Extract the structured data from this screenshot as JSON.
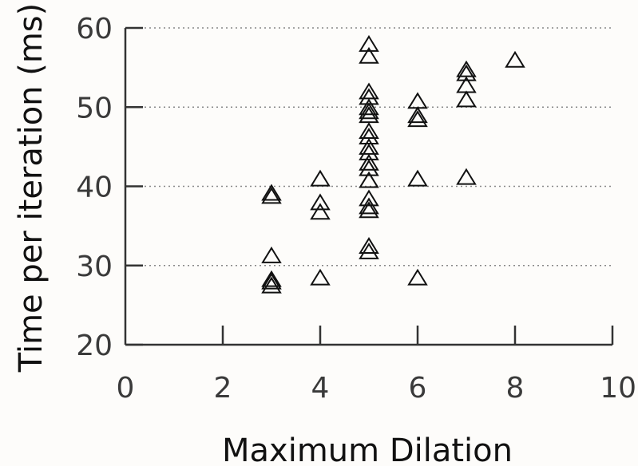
{
  "chart_data": {
    "type": "scatter",
    "title": "",
    "xlabel": "Maximum Dilation",
    "ylabel": "Time per iteration (ms)",
    "xlim": [
      0,
      10
    ],
    "ylim": [
      20,
      60
    ],
    "xticks": [
      "0",
      "2",
      "4",
      "6",
      "8",
      "10"
    ],
    "yticks": [
      "20",
      "30",
      "40",
      "50",
      "60"
    ],
    "grid": "horizontal dotted",
    "marker": "open-triangle",
    "points": [
      {
        "x": 3,
        "y": 27.5
      },
      {
        "x": 3,
        "y": 28
      },
      {
        "x": 3,
        "y": 28.3
      },
      {
        "x": 3,
        "y": 31.3
      },
      {
        "x": 3,
        "y": 38.8
      },
      {
        "x": 3,
        "y": 39.2
      },
      {
        "x": 4,
        "y": 28.5
      },
      {
        "x": 4,
        "y": 36.8
      },
      {
        "x": 4,
        "y": 38
      },
      {
        "x": 4,
        "y": 41
      },
      {
        "x": 5,
        "y": 31.8
      },
      {
        "x": 5,
        "y": 32.5
      },
      {
        "x": 5,
        "y": 37
      },
      {
        "x": 5,
        "y": 37.5
      },
      {
        "x": 5,
        "y": 38.5
      },
      {
        "x": 5,
        "y": 40.8
      },
      {
        "x": 5,
        "y": 42.3
      },
      {
        "x": 5,
        "y": 43
      },
      {
        "x": 5,
        "y": 44.3
      },
      {
        "x": 5,
        "y": 45
      },
      {
        "x": 5,
        "y": 46.3
      },
      {
        "x": 5,
        "y": 47
      },
      {
        "x": 5,
        "y": 49
      },
      {
        "x": 5,
        "y": 49.5
      },
      {
        "x": 5,
        "y": 50
      },
      {
        "x": 5,
        "y": 51.3
      },
      {
        "x": 5,
        "y": 52
      },
      {
        "x": 5,
        "y": 56.5
      },
      {
        "x": 5,
        "y": 58
      },
      {
        "x": 6,
        "y": 28.5
      },
      {
        "x": 6,
        "y": 41
      },
      {
        "x": 6,
        "y": 48.5
      },
      {
        "x": 6,
        "y": 49
      },
      {
        "x": 6,
        "y": 50.8
      },
      {
        "x": 7,
        "y": 41.2
      },
      {
        "x": 7,
        "y": 51
      },
      {
        "x": 7,
        "y": 52.8
      },
      {
        "x": 7,
        "y": 54.3
      },
      {
        "x": 7,
        "y": 54.8
      },
      {
        "x": 8,
        "y": 56
      }
    ]
  }
}
